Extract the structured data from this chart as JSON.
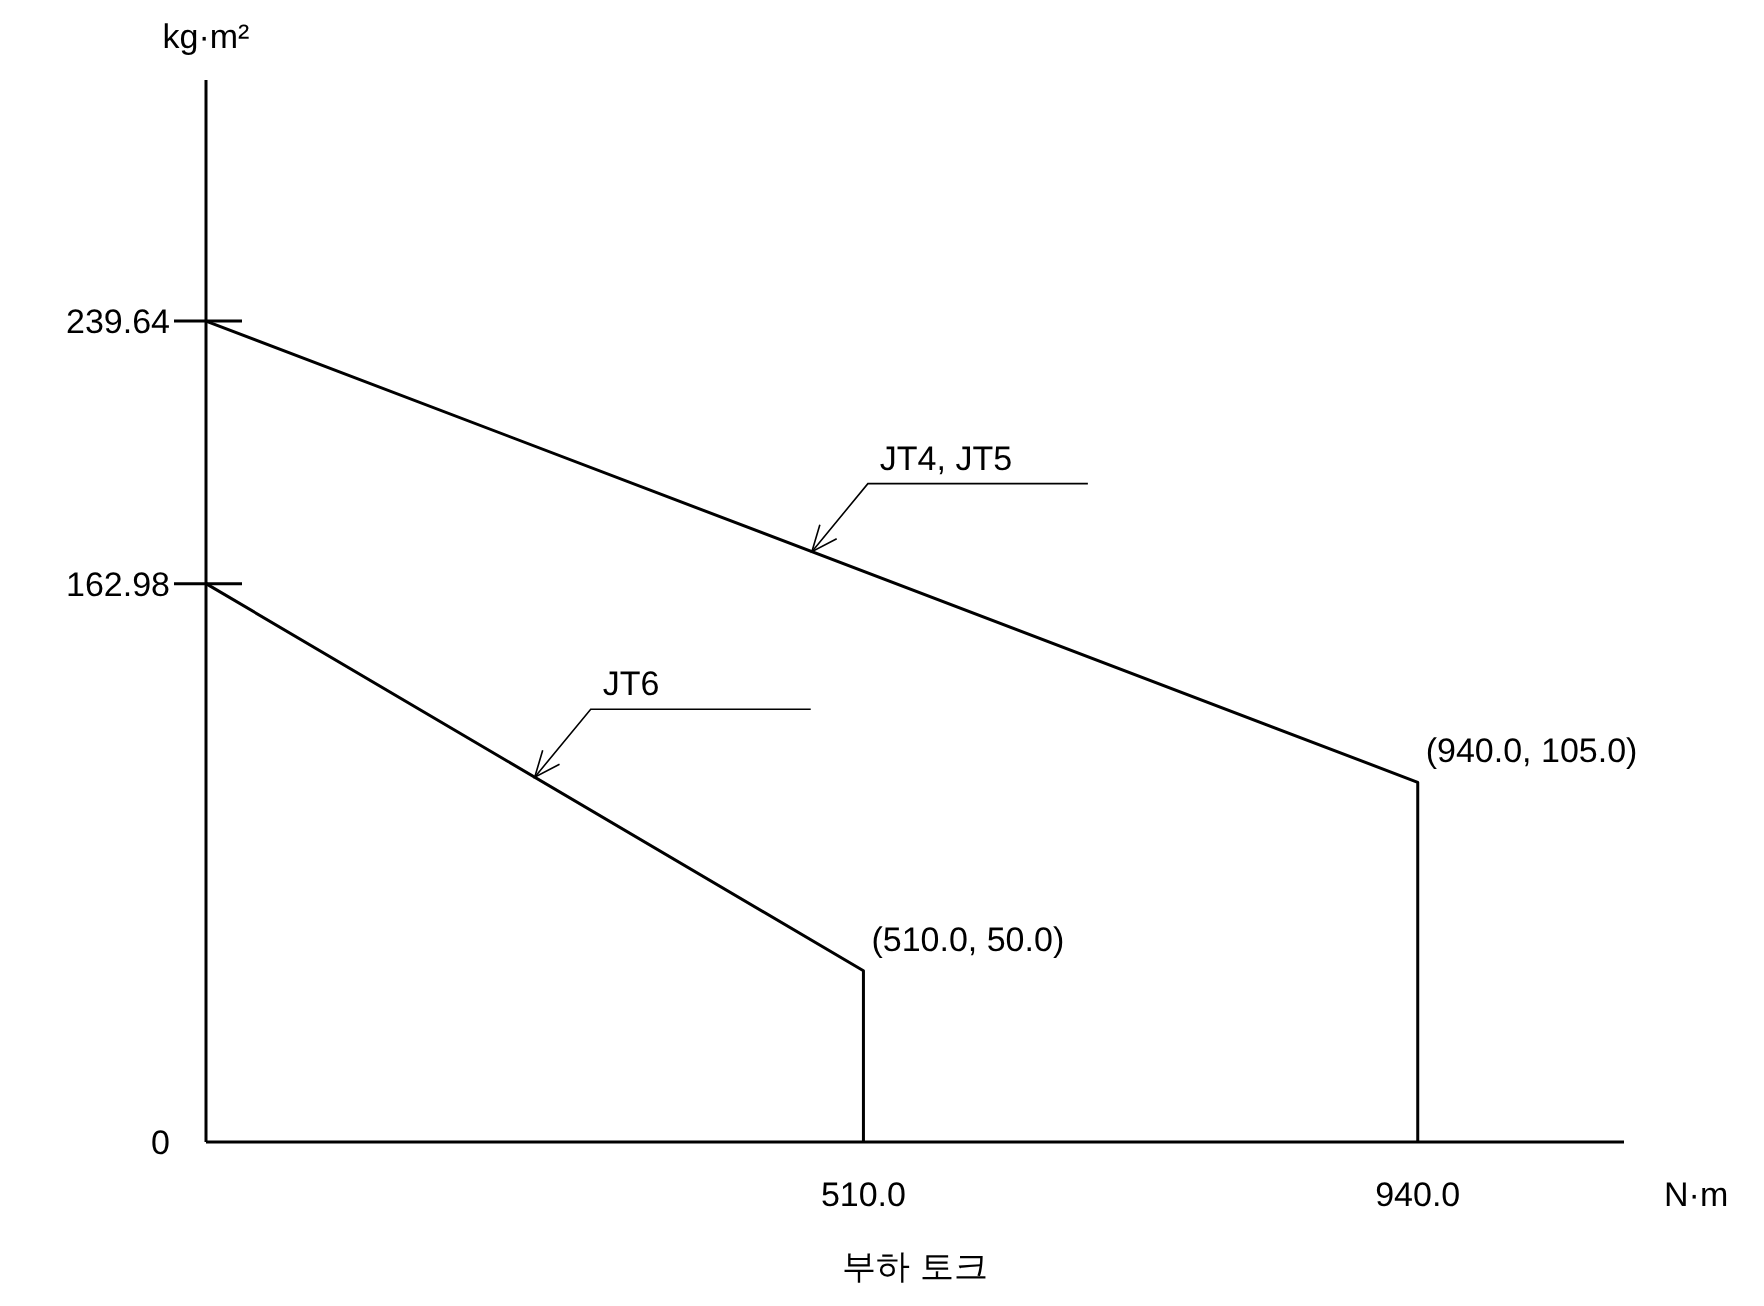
{
  "chart_data": {
    "type": "line",
    "xlabel": "N·m",
    "ylabel": "kg·m²",
    "xlim": [
      0,
      1100
    ],
    "ylim": [
      0,
      310
    ],
    "xticks": [
      {
        "value": 510,
        "label": "510.0"
      },
      {
        "value": 940,
        "label": "940.0"
      }
    ],
    "yticks": [
      0,
      162.98,
      239.64
    ],
    "series": [
      {
        "name": "JT4, JT5",
        "color": "#000000",
        "x": [
          0,
          940,
          940
        ],
        "values": [
          239.64,
          105,
          0
        ]
      },
      {
        "name": "JT6",
        "color": "#000000",
        "x": [
          0,
          510,
          510
        ],
        "values": [
          162.98,
          50,
          0
        ]
      }
    ],
    "annotations": [
      {
        "text": "(940.0, 105.0)",
        "x": 940,
        "y": 105
      },
      {
        "text": "(510.0, 50.0)",
        "x": 510,
        "y": 50
      },
      "부하 토크"
    ],
    "grid": false,
    "marker": "none",
    "line_style": "solid"
  }
}
